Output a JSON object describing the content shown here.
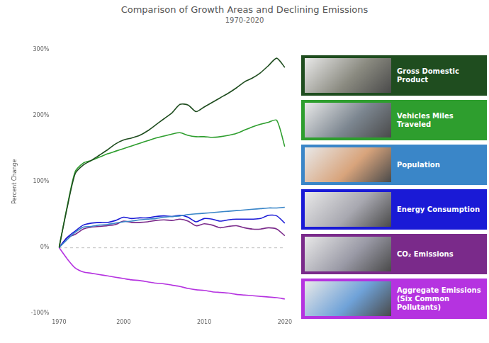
{
  "chart_data": {
    "type": "line",
    "title": "Comparison of Growth Areas and Declining Emissions",
    "subtitle": "1970-2020",
    "y_label": "Percent Change",
    "categories": [
      "1970",
      null,
      null,
      null,
      null,
      null,
      null,
      null,
      "2000",
      null,
      null,
      null,
      null,
      null,
      null,
      null,
      null,
      null,
      "2010",
      null,
      null,
      null,
      null,
      null,
      null,
      null,
      null,
      null,
      "2020"
    ],
    "ylim": [
      -100,
      300
    ],
    "yticks": [
      {
        "value": -100,
        "label": "-100%"
      },
      {
        "value": 0,
        "label": "0%"
      },
      {
        "value": 100,
        "label": "100%"
      },
      {
        "value": 200,
        "label": "200%"
      },
      {
        "value": 300,
        "label": "300%"
      }
    ],
    "grid": false,
    "legend": "right",
    "series": [
      {
        "name": "Gross Domestic Product",
        "color": "#1f4d1f",
        "values": [
          0,
          60,
          112,
          125,
          132,
          140,
          148,
          157,
          163,
          166,
          170,
          177,
          186,
          195,
          204,
          217,
          216,
          206,
          213,
          220,
          227,
          234,
          242,
          251,
          257,
          265,
          276,
          287,
          273
        ]
      },
      {
        "name": "Vehicles Miles Traveled",
        "color": "#2e9e2e",
        "values": [
          0,
          62,
          115,
          128,
          132,
          137,
          142,
          146,
          150,
          154,
          158,
          162,
          166,
          169,
          172,
          174,
          170,
          168,
          168,
          167,
          168,
          170,
          173,
          178,
          183,
          187,
          190,
          193,
          153
        ]
      },
      {
        "name": "Population",
        "color": "#3a86c8",
        "values": [
          0,
          12,
          23,
          31,
          32,
          34,
          35,
          37,
          39,
          40,
          42,
          43,
          44,
          46,
          47,
          48,
          50,
          51,
          52,
          53,
          54,
          55,
          56,
          57,
          58,
          59,
          60,
          60,
          61
        ]
      },
      {
        "name": "Energy Consumption",
        "color": "#1a1ad6",
        "values": [
          0,
          15,
          25,
          34,
          37,
          38,
          38,
          41,
          46,
          44,
          45,
          45,
          47,
          48,
          47,
          49,
          46,
          39,
          44,
          43,
          40,
          42,
          43,
          43,
          43,
          44,
          49,
          48,
          37
        ]
      },
      {
        "name": "CO₂ Emissions",
        "color": "#7a2a8a",
        "values": [
          0,
          15,
          20,
          28,
          31,
          32,
          33,
          35,
          40,
          38,
          38,
          39,
          41,
          42,
          41,
          43,
          40,
          33,
          36,
          34,
          30,
          32,
          33,
          30,
          28,
          28,
          30,
          28,
          18
        ]
      },
      {
        "name": "Aggregate Emissions (Six Common Pollutants)",
        "color": "#b533e0",
        "values": [
          0,
          -17,
          -31,
          -37,
          -39,
          -41,
          -43,
          -45,
          -47,
          -49,
          -50,
          -52,
          -54,
          -55,
          -57,
          -59,
          -62,
          -64,
          -65,
          -67,
          -68,
          -69,
          -71,
          -72,
          -73,
          -74,
          -75,
          -76,
          -78
        ]
      }
    ]
  }
}
